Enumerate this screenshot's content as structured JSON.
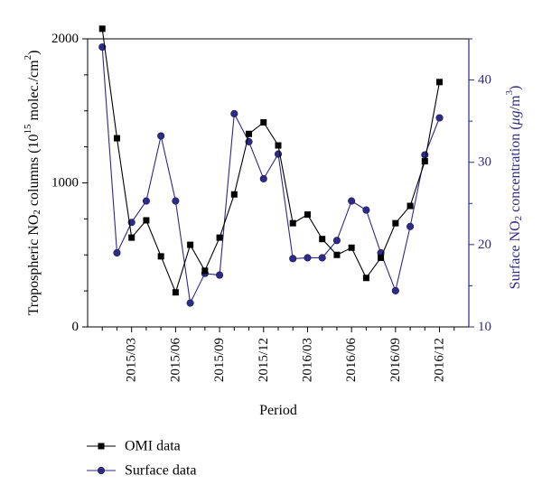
{
  "chart_data": {
    "type": "line",
    "xlabel": "Period",
    "ylabel_left": {
      "pre": "Tropospheric NO",
      "sub": "2",
      "mid": " columns (10",
      "sup": "15",
      "post": " molec./cm",
      "sup2": "2",
      "end": ")"
    },
    "ylabel_right": {
      "pre": "Surface NO",
      "sub": "2",
      "mid": " concentration (",
      "mu": "μg",
      "post": "/m",
      "sup": "3",
      "end": ")"
    },
    "x_tick_labels": [
      "2015/03",
      "2015/06",
      "2015/09",
      "2015/12",
      "2016/03",
      "2016/06",
      "2016/09",
      "2016/12"
    ],
    "x_tick_months": [
      3,
      6,
      9,
      12,
      15,
      18,
      21,
      24
    ],
    "xlim": [
      0,
      26
    ],
    "y_left": {
      "lim": [
        0,
        2000
      ],
      "ticks": [
        0,
        1000,
        2000
      ],
      "tick_labels": [
        "0",
        "1000",
        "2000"
      ]
    },
    "y_right": {
      "lim": [
        10,
        45
      ],
      "ticks": [
        10,
        20,
        30,
        40
      ],
      "tick_labels": [
        "10",
        "20",
        "30",
        "40"
      ]
    },
    "series": [
      {
        "name": "OMI data",
        "axis": "left",
        "color": "#000000",
        "marker": "square",
        "x": [
          1,
          2,
          3,
          4,
          5,
          6,
          7,
          8,
          9,
          10,
          11,
          12,
          13,
          14,
          15,
          16,
          17,
          18,
          19,
          20,
          21,
          22,
          23,
          24
        ],
        "values": [
          2070,
          1310,
          620,
          740,
          490,
          240,
          570,
          390,
          620,
          920,
          1340,
          1420,
          1260,
          720,
          780,
          610,
          500,
          550,
          340,
          480,
          720,
          840,
          1150,
          1700
        ]
      },
      {
        "name": "Surface data",
        "axis": "right",
        "color": "#2e2a85",
        "marker": "circle",
        "x": [
          1,
          2,
          3,
          4,
          5,
          6,
          7,
          8,
          9,
          10,
          11,
          12,
          13,
          14,
          15,
          16,
          17,
          18,
          19,
          20,
          21,
          22,
          23,
          24
        ],
        "values": [
          44.0,
          19.0,
          22.7,
          25.3,
          33.2,
          25.3,
          12.9,
          16.5,
          16.3,
          35.9,
          32.5,
          28.0,
          31.0,
          18.3,
          18.4,
          18.4,
          20.5,
          25.3,
          24.2,
          19.0,
          14.4,
          22.2,
          30.9,
          35.4
        ]
      }
    ],
    "legend": {
      "placement": "bottom-left"
    }
  }
}
